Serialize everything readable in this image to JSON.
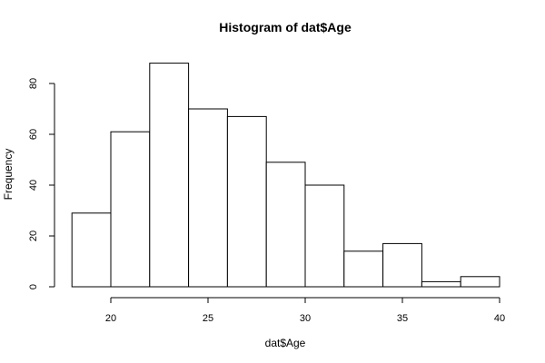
{
  "chart_data": {
    "type": "bar",
    "title": "Histogram of dat$Age",
    "xlabel": "dat$Age",
    "ylabel": "Frequency",
    "bins": [
      {
        "start": 18,
        "end": 20,
        "count": 29
      },
      {
        "start": 20,
        "end": 22,
        "count": 61
      },
      {
        "start": 22,
        "end": 24,
        "count": 88
      },
      {
        "start": 24,
        "end": 26,
        "count": 70
      },
      {
        "start": 26,
        "end": 28,
        "count": 67
      },
      {
        "start": 28,
        "end": 30,
        "count": 49
      },
      {
        "start": 30,
        "end": 32,
        "count": 40
      },
      {
        "start": 32,
        "end": 34,
        "count": 14
      },
      {
        "start": 34,
        "end": 36,
        "count": 17
      },
      {
        "start": 36,
        "end": 38,
        "count": 2
      },
      {
        "start": 38,
        "end": 40,
        "count": 4
      }
    ],
    "x_ticks": [
      "20",
      "25",
      "30",
      "35",
      "40"
    ],
    "y_ticks": [
      "0",
      "20",
      "40",
      "60",
      "80"
    ],
    "xlim": [
      18,
      40
    ],
    "ylim": [
      0,
      88
    ],
    "grid": false,
    "legend": "none",
    "colors": {
      "bar_fill": "#ffffff",
      "bar_stroke": "#000000"
    }
  }
}
